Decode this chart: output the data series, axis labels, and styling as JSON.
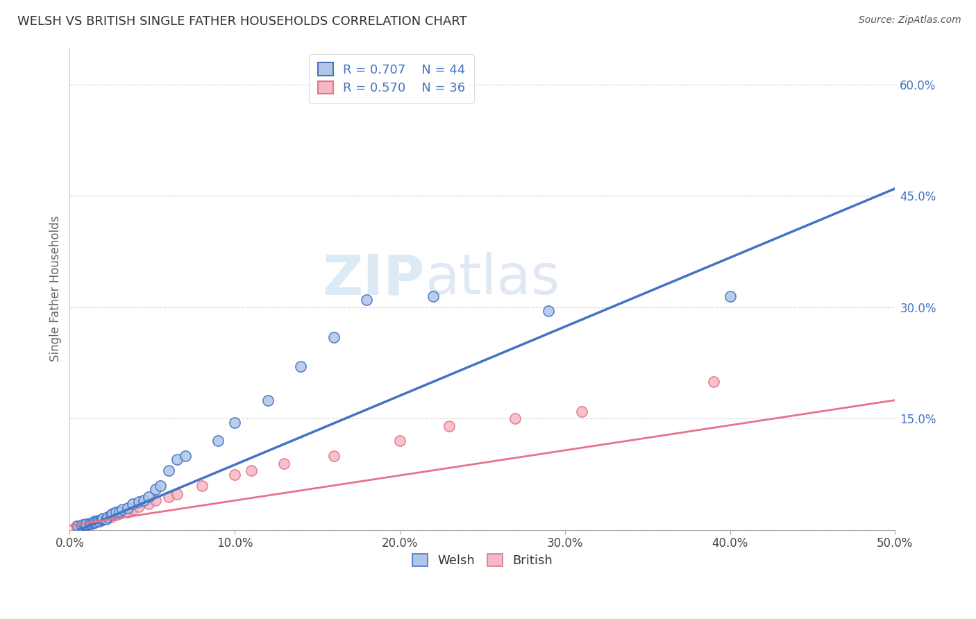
{
  "title": "WELSH VS BRITISH SINGLE FATHER HOUSEHOLDS CORRELATION CHART",
  "source": "Source: ZipAtlas.com",
  "xlabel": "",
  "ylabel": "Single Father Households",
  "xlim": [
    0.0,
    0.5
  ],
  "ylim": [
    0.0,
    0.65
  ],
  "xtick_labels": [
    "0.0%",
    "10.0%",
    "20.0%",
    "30.0%",
    "40.0%",
    "50.0%"
  ],
  "xtick_vals": [
    0.0,
    0.1,
    0.2,
    0.3,
    0.4,
    0.5
  ],
  "ytick_labels": [
    "",
    "15.0%",
    "30.0%",
    "45.0%",
    "60.0%"
  ],
  "ytick_vals": [
    0.0,
    0.15,
    0.3,
    0.45,
    0.6
  ],
  "grid_color": "#c8c8c8",
  "background_color": "#ffffff",
  "welsh_color": "#aec6e8",
  "british_color": "#f5b8c4",
  "welsh_line_color": "#4472c4",
  "british_line_color": "#e8728a",
  "welsh_R": 0.707,
  "welsh_N": 44,
  "british_R": 0.57,
  "british_N": 36,
  "watermark_zip": "ZIP",
  "watermark_atlas": "atlas",
  "welsh_scatter_x": [
    0.005,
    0.007,
    0.008,
    0.009,
    0.01,
    0.01,
    0.01,
    0.012,
    0.013,
    0.014,
    0.015,
    0.015,
    0.016,
    0.017,
    0.018,
    0.019,
    0.02,
    0.02,
    0.022,
    0.023,
    0.025,
    0.026,
    0.028,
    0.03,
    0.032,
    0.035,
    0.038,
    0.042,
    0.045,
    0.048,
    0.052,
    0.055,
    0.06,
    0.065,
    0.07,
    0.09,
    0.1,
    0.12,
    0.14,
    0.16,
    0.18,
    0.22,
    0.29,
    0.4
  ],
  "welsh_scatter_y": [
    0.005,
    0.005,
    0.007,
    0.006,
    0.006,
    0.007,
    0.008,
    0.008,
    0.009,
    0.01,
    0.01,
    0.012,
    0.011,
    0.013,
    0.012,
    0.014,
    0.015,
    0.016,
    0.015,
    0.018,
    0.02,
    0.022,
    0.024,
    0.025,
    0.028,
    0.03,
    0.035,
    0.038,
    0.04,
    0.045,
    0.055,
    0.06,
    0.08,
    0.095,
    0.1,
    0.12,
    0.145,
    0.175,
    0.22,
    0.26,
    0.31,
    0.315,
    0.295,
    0.315
  ],
  "british_scatter_x": [
    0.004,
    0.006,
    0.007,
    0.008,
    0.009,
    0.01,
    0.011,
    0.012,
    0.013,
    0.014,
    0.015,
    0.016,
    0.017,
    0.018,
    0.02,
    0.022,
    0.025,
    0.028,
    0.03,
    0.035,
    0.038,
    0.042,
    0.048,
    0.052,
    0.06,
    0.065,
    0.08,
    0.1,
    0.11,
    0.13,
    0.16,
    0.2,
    0.23,
    0.27,
    0.31,
    0.39
  ],
  "british_scatter_y": [
    0.005,
    0.004,
    0.005,
    0.006,
    0.005,
    0.007,
    0.006,
    0.008,
    0.008,
    0.009,
    0.01,
    0.011,
    0.012,
    0.012,
    0.014,
    0.016,
    0.018,
    0.02,
    0.022,
    0.024,
    0.028,
    0.032,
    0.035,
    0.04,
    0.045,
    0.048,
    0.06,
    0.075,
    0.08,
    0.09,
    0.1,
    0.12,
    0.14,
    0.15,
    0.16,
    0.2
  ],
  "welsh_line_x0": 0.0,
  "welsh_line_y0": -0.005,
  "welsh_line_x1": 0.5,
  "welsh_line_y1": 0.46,
  "british_line_x0": 0.0,
  "british_line_y0": 0.006,
  "british_line_x1": 0.5,
  "british_line_y1": 0.175
}
